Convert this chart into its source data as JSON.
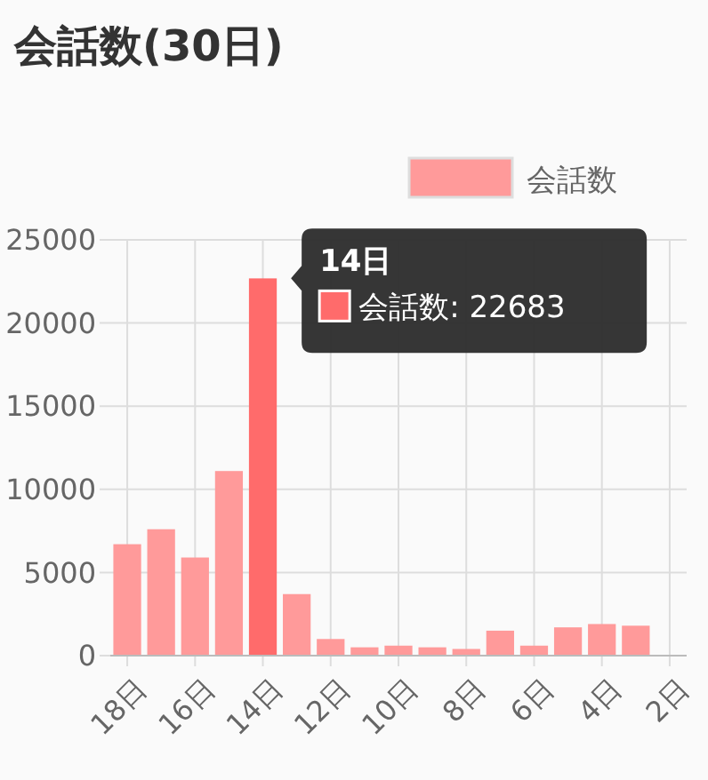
{
  "chart_data": {
    "type": "bar",
    "title": "会話数(30日)",
    "categories": [
      "18日",
      null,
      "16日",
      null,
      "14日",
      null,
      "12日",
      null,
      "10日",
      null,
      "8日",
      null,
      "6日",
      null,
      "4日",
      null,
      "2日"
    ],
    "series": [
      {
        "name": "会話数",
        "color": "#ff9a9a",
        "colors": [
          "#ff9a9a",
          "#ff9a9a",
          "#ff9a9a",
          "#ff9a9a",
          "#ff6b6b",
          "#ff9a9a",
          "#ff9a9a",
          "#ff9a9a",
          "#ff9a9a",
          "#ff9a9a",
          "#ff9a9a",
          "#ff9a9a",
          "#ff9a9a",
          "#ff9a9a",
          "#ff9a9a",
          "#ff9a9a",
          null
        ],
        "values": [
          6700,
          7600,
          5900,
          11100,
          22683,
          3700,
          1000,
          500,
          600,
          500,
          400,
          1500,
          600,
          1700,
          1900,
          1800,
          null
        ]
      }
    ],
    "ylim": [
      0,
      25000
    ],
    "yticks": [
      0,
      5000,
      10000,
      15000,
      20000,
      25000
    ],
    "grid": true,
    "legend": "top",
    "annotations": [
      {
        "text": "14日",
        "x": "14日",
        "y": 22683
      },
      {
        "text": "会話数: 22683",
        "x": "14日",
        "y": 22683
      }
    ]
  }
}
